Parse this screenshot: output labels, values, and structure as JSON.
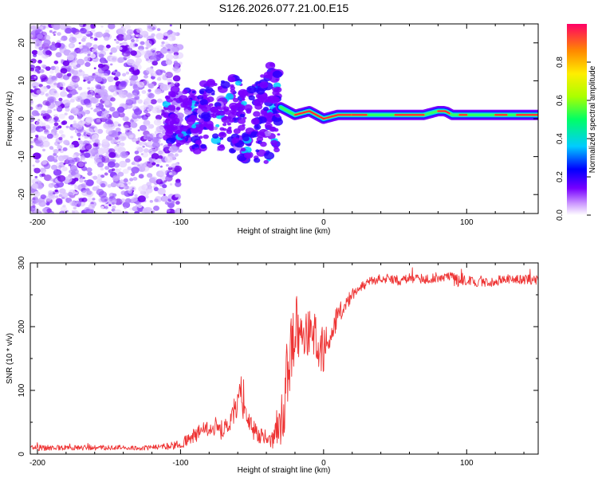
{
  "title": "S126.2026.077.21.00.E15",
  "chart_data": [
    {
      "type": "heatmap",
      "xlabel": "Height of straight line (km)",
      "ylabel": "Frequency (Hz)",
      "xlim": [
        -205,
        150
      ],
      "ylim": [
        -25,
        25
      ],
      "xticks": [
        -200,
        -100,
        0,
        100
      ],
      "yticks": [
        -20,
        -10,
        0,
        10,
        20
      ],
      "colorbar": {
        "label": "Normalized spectral amplitude",
        "range": [
          0,
          1
        ],
        "ticks": [
          "0.0",
          "0.2",
          "0.4",
          "0.6",
          "0.8"
        ],
        "stops": [
          "#ffffff",
          "#cc99ff",
          "#7700ff",
          "#0000ff",
          "#00ccff",
          "#00ff66",
          "#aaff00",
          "#ffee00",
          "#ff8800",
          "#ff0066"
        ]
      },
      "ridge": {
        "x": [
          -110,
          -100,
          -90,
          -80,
          -70,
          -60,
          -50,
          -40,
          -35,
          -30,
          -20,
          -10,
          0,
          10,
          20,
          30,
          40,
          50,
          60,
          70,
          80,
          85,
          90,
          100,
          110,
          120,
          130,
          140,
          150
        ],
        "y": [
          2,
          3,
          1,
          4,
          2,
          3,
          1,
          2,
          5,
          3,
          1,
          2,
          0,
          1,
          1,
          1,
          1,
          1,
          1,
          1,
          2,
          2,
          1,
          1,
          1,
          1,
          1,
          1,
          1
        ]
      }
    },
    {
      "type": "line",
      "xlabel": "Height of straight line (km)",
      "ylabel": "SNR (10 * v/v)",
      "xlim": [
        -205,
        150
      ],
      "ylim": [
        0,
        300
      ],
      "xticks": [
        -200,
        -100,
        0,
        100
      ],
      "yticks": [
        0,
        100,
        200,
        300
      ],
      "series": [
        {
          "name": "SNR",
          "color": "#ee3333",
          "x": [
            -205,
            -180,
            -150,
            -120,
            -110,
            -100,
            -95,
            -90,
            -85,
            -80,
            -75,
            -70,
            -65,
            -60,
            -58,
            -55,
            -50,
            -45,
            -40,
            -35,
            -30,
            -27,
            -25,
            -22,
            -20,
            -15,
            -10,
            -5,
            0,
            5,
            10,
            15,
            20,
            25,
            30,
            40,
            50,
            60,
            70,
            80,
            90,
            95,
            97,
            100,
            110,
            120,
            130,
            140,
            150
          ],
          "y": [
            10,
            10,
            10,
            10,
            12,
            15,
            22,
            30,
            35,
            40,
            45,
            35,
            55,
            80,
            95,
            60,
            40,
            30,
            25,
            20,
            50,
            90,
            130,
            170,
            200,
            200,
            195,
            180,
            160,
            190,
            220,
            235,
            250,
            262,
            268,
            275,
            272,
            276,
            275,
            278,
            280,
            270,
            275,
            272,
            270,
            271,
            275,
            274,
            272
          ],
          "amp": [
            5,
            4,
            4,
            4,
            5,
            8,
            10,
            12,
            14,
            15,
            16,
            16,
            20,
            22,
            22,
            20,
            16,
            14,
            12,
            14,
            40,
            60,
            70,
            60,
            50,
            45,
            40,
            40,
            35,
            30,
            20,
            12,
            10,
            8,
            8,
            8,
            8,
            8,
            8,
            8,
            8,
            10,
            10,
            8,
            8,
            8,
            8,
            8,
            8
          ]
        }
      ]
    }
  ]
}
